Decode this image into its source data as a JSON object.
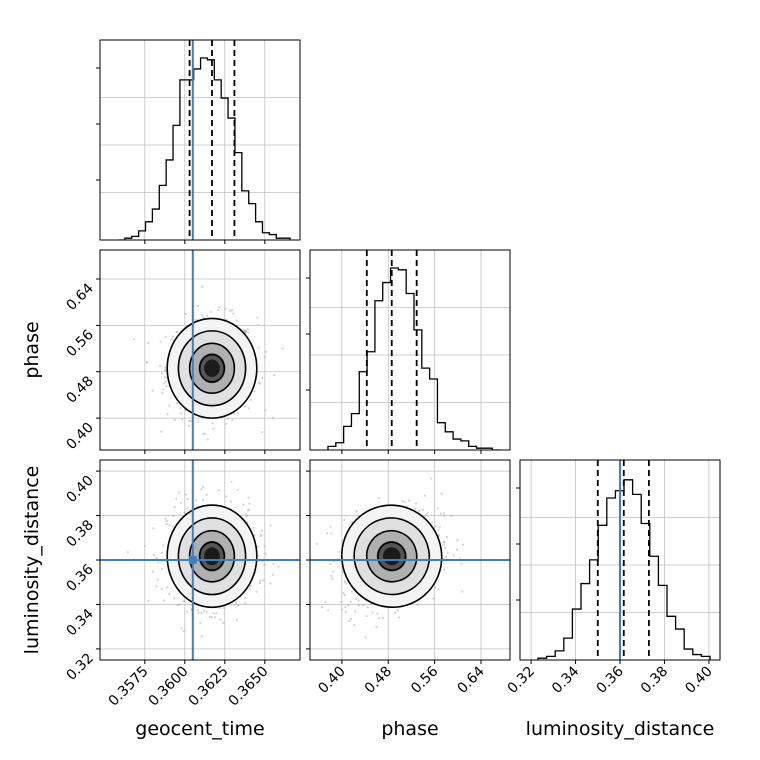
{
  "chart_data": {
    "type": "corner",
    "parameters": [
      "geocent_time",
      "phase",
      "luminosity_distance"
    ],
    "axis_labels": {
      "x": [
        "geocent_time",
        "phase",
        "luminosity_distance"
      ],
      "y": [
        "",
        "phase",
        "luminosity_distance"
      ]
    },
    "ticks": {
      "geocent_time": [
        "0.3575",
        "0.3600",
        "0.3625",
        "0.3650"
      ],
      "phase": [
        "0.40",
        "0.48",
        "0.56",
        "0.64"
      ],
      "luminosity_distance": [
        "0.32",
        "0.34",
        "0.36",
        "0.38",
        "0.40"
      ]
    },
    "ranges": {
      "geocent_time": [
        0.3547,
        0.3672
      ],
      "phase": [
        0.345,
        0.69
      ],
      "luminosity_distance": [
        0.315,
        0.405
      ]
    },
    "injection": {
      "geocent_time": 0.3605,
      "phase": null,
      "luminosity_distance": 0.36
    },
    "quantiles": {
      "geocent_time": [
        0.3603,
        0.3617,
        0.3631
      ],
      "phase": [
        0.443,
        0.486,
        0.529
      ],
      "luminosity_distance": [
        0.35,
        0.3617,
        0.373
      ]
    },
    "histograms": {
      "geocent_time": [
        0.0,
        0.01,
        0.02,
        0.05,
        0.1,
        0.17,
        0.3,
        0.44,
        0.63,
        0.88,
        0.88,
        0.94,
        1.0,
        0.99,
        0.88,
        0.78,
        0.67,
        0.48,
        0.27,
        0.2,
        0.1,
        0.04,
        0.03,
        0.01,
        0.01
      ],
      "phase": [
        0.02,
        0.04,
        0.13,
        0.2,
        0.43,
        0.54,
        0.82,
        0.92,
        1.0,
        0.99,
        0.86,
        0.66,
        0.45,
        0.39,
        0.15,
        0.1,
        0.06,
        0.05,
        0.02,
        0.01,
        0.01,
        0.0
      ],
      "luminosity_distance": [
        0.01,
        0.02,
        0.05,
        0.12,
        0.28,
        0.42,
        0.55,
        0.74,
        0.89,
        0.93,
        0.99,
        0.91,
        0.75,
        0.57,
        0.41,
        0.24,
        0.17,
        0.06,
        0.03,
        0.02
      ]
    },
    "grid": true,
    "colors": {
      "injection": "#3f7fbf",
      "hist": "#000000",
      "quantile": "#000000",
      "grid": "#c0c0c0"
    }
  }
}
